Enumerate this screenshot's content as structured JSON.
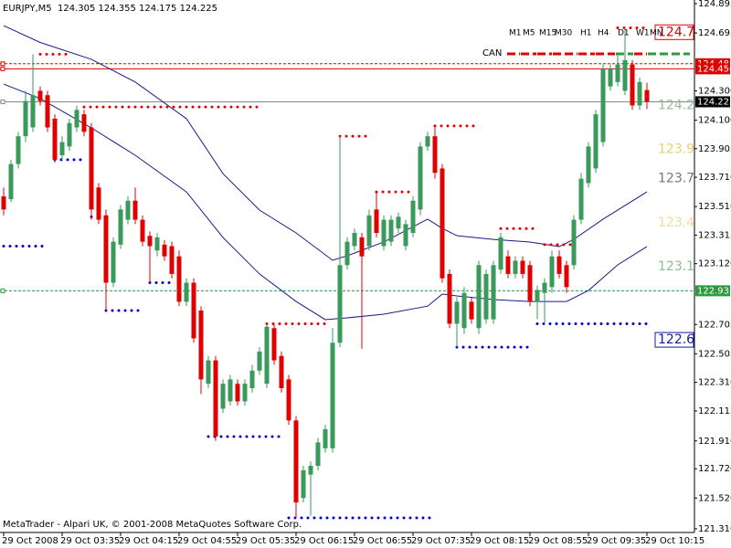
{
  "chart_data": {
    "type": "candlestick",
    "title": "EURJPY,M5  124.305 124.355 124.175 124.225",
    "footer": "MetaTrader - Alpari UK, © 2001-2008 MetaQuotes Software Corp.",
    "categories": [
      "29 Oct 2008",
      null,
      null,
      null,
      null,
      null,
      null,
      null,
      "29 Oct 03:35",
      null,
      null,
      null,
      null,
      null,
      null,
      null,
      "29 Oct 04:15",
      null,
      null,
      null,
      null,
      null,
      null,
      null,
      "29 Oct 04:55",
      null,
      null,
      null,
      null,
      null,
      null,
      null,
      "29 Oct 05:35",
      null,
      null,
      null,
      null,
      null,
      null,
      null,
      "29 Oct 06:15",
      null,
      null,
      null,
      null,
      null,
      null,
      null,
      "29 Oct 06:55",
      null,
      null,
      null,
      null,
      null,
      null,
      null,
      "29 Oct 07:35",
      null,
      null,
      null,
      null,
      null,
      null,
      null,
      "29 Oct 08:15",
      null,
      null,
      null,
      null,
      null,
      null,
      null,
      "29 Oct 08:55",
      null,
      null,
      null,
      null,
      null,
      null,
      null,
      "29 Oct 09:35",
      null,
      null,
      null,
      null,
      null,
      null,
      null,
      "29 Oct 10:15"
    ],
    "open": [
      123.58,
      123.56,
      123.8,
      123.99,
      124.05,
      124.3,
      124.27,
      124.11,
      123.86,
      123.92,
      124.05,
      124.14,
      124.05,
      123.64,
      123.45,
      122.99,
      123.25,
      123.42,
      123.55,
      123.42,
      123.31,
      123.21,
      123.25,
      123.24,
      123.17,
      122.86,
      122.99,
      122.8,
      122.3,
      122.46,
      122.13,
      122.18,
      122.3,
      122.18,
      122.27,
      122.39,
      122.3,
      122.68,
      122.49,
      122.33,
      122.05,
      121.52,
      121.68,
      121.74,
      121.86,
      121.86,
      122.58,
      123.11,
      123.24,
      123.3,
      123.24,
      123.49,
      123.24,
      123.27,
      123.36,
      123.24,
      123.33,
      123.49,
      123.92,
      123.99,
      123.77,
      123.05,
      122.71,
      122.68,
      122.86,
      122.68,
      122.74,
      122.74,
      123.08,
      123.17,
      123.05,
      123.14,
      123.11,
      122.86,
      122.92,
      122.96,
      123.17,
      123.11,
      123.11,
      123.42,
      123.67,
      123.77,
      123.95,
      124.33,
      124.36,
      124.3,
      124.48,
      124.2,
      124.305
    ],
    "high": [
      123.64,
      123.83,
      124.02,
      124.3,
      124.55,
      124.33,
      124.3,
      124.14,
      123.99,
      124.11,
      124.2,
      124.17,
      124.08,
      123.67,
      123.49,
      123.3,
      123.52,
      123.58,
      123.64,
      123.45,
      123.34,
      123.33,
      123.28,
      123.27,
      123.21,
      123.02,
      123.02,
      122.83,
      122.49,
      122.49,
      122.33,
      122.36,
      122.33,
      122.33,
      122.43,
      122.55,
      122.71,
      122.71,
      122.52,
      122.36,
      122.08,
      121.74,
      121.77,
      121.93,
      122.02,
      122.68,
      123.99,
      123.3,
      123.36,
      123.33,
      123.49,
      123.61,
      123.45,
      123.45,
      123.47,
      123.42,
      123.58,
      123.95,
      124.02,
      124.05,
      123.8,
      123.08,
      122.89,
      122.96,
      122.89,
      123.14,
      123.08,
      123.14,
      123.33,
      123.21,
      123.17,
      123.17,
      123.14,
      122.97,
      123.02,
      123.21,
      123.21,
      123.14,
      123.45,
      123.74,
      123.95,
      124.17,
      124.48,
      124.48,
      124.55,
      124.73,
      124.51,
      124.39,
      124.355
    ],
    "low": [
      123.45,
      123.54,
      123.77,
      123.95,
      124.02,
      124.2,
      124.02,
      123.81,
      123.83,
      123.89,
      124.02,
      123.99,
      123.42,
      123.39,
      122.8,
      122.96,
      123.22,
      123.39,
      123.39,
      123.24,
      122.99,
      123.17,
      123.14,
      123.02,
      122.83,
      122.83,
      122.58,
      122.23,
      122.27,
      121.91,
      122.1,
      122.15,
      122.15,
      122.15,
      122.24,
      122.36,
      122.27,
      122.43,
      122.24,
      122.02,
      121.38,
      121.49,
      121.4,
      121.71,
      121.83,
      121.83,
      122.55,
      123.08,
      123.21,
      122.54,
      123.21,
      123.3,
      123.21,
      123.24,
      123.33,
      123.21,
      123.3,
      123.45,
      123.89,
      123.7,
      122.99,
      122.68,
      122.55,
      122.64,
      122.71,
      122.64,
      122.71,
      122.71,
      123.05,
      123.02,
      123.02,
      123.02,
      122.83,
      122.74,
      122.71,
      122.92,
      123.02,
      122.92,
      123.08,
      123.39,
      123.64,
      123.74,
      123.92,
      124.3,
      124.33,
      124.27,
      124.17,
      124.17,
      124.175
    ],
    "close": [
      123.49,
      123.8,
      123.99,
      124.23,
      124.27,
      124.23,
      124.05,
      123.83,
      123.95,
      124.08,
      124.17,
      124.02,
      123.49,
      123.42,
      122.99,
      123.27,
      123.49,
      123.55,
      123.42,
      123.27,
      123.24,
      123.3,
      123.17,
      123.05,
      122.86,
      122.99,
      122.61,
      122.33,
      122.46,
      121.94,
      122.3,
      122.33,
      122.18,
      122.3,
      122.39,
      122.52,
      122.69,
      122.46,
      122.27,
      122.05,
      121.49,
      121.71,
      121.74,
      121.9,
      121.99,
      122.58,
      123.11,
      123.27,
      123.33,
      123.17,
      123.45,
      123.33,
      123.42,
      123.42,
      123.44,
      123.39,
      123.55,
      123.92,
      123.99,
      123.74,
      123.02,
      122.71,
      122.86,
      122.92,
      122.74,
      123.11,
      123.05,
      123.11,
      123.3,
      123.05,
      123.14,
      123.05,
      122.86,
      122.94,
      122.99,
      123.17,
      123.05,
      122.96,
      123.42,
      123.7,
      123.92,
      124.14,
      124.45,
      124.45,
      124.48,
      124.51,
      124.2,
      124.36,
      124.225
    ],
    "up_color": "#3a9a5c",
    "down_color": "#e00000",
    "ylim": [
      121.31,
      124.895
    ],
    "yticks": [
      124.895,
      124.695,
      {
        "value": 124.3,
        "label": "124.300"
      },
      {
        "value": 124.1,
        "label": "124.100"
      },
      123.905,
      {
        "value": 123.71,
        "label": "123.710"
      },
      {
        "value": 123.51,
        "label": "123.510"
      },
      123.315,
      {
        "value": 123.12,
        "label": "123.120"
      },
      122.705,
      122.505,
      {
        "value": 122.31,
        "label": "122.310"
      },
      122.115,
      {
        "value": 121.91,
        "label": "121.910"
      },
      {
        "value": 121.72,
        "label": "121.720"
      },
      {
        "value": 121.52,
        "label": "121.520"
      },
      {
        "value": 121.31,
        "label": "121.310"
      }
    ],
    "ma_lines": [
      {
        "color": "#1a1a8c",
        "x": [
          0,
          5,
          12,
          18,
          25,
          30,
          35,
          40,
          45,
          47,
          52,
          58,
          60,
          62,
          67,
          72,
          76,
          78,
          82,
          86,
          88
        ],
        "values": [
          124.745,
          124.63,
          124.515,
          124.36,
          124.11,
          123.735,
          123.486,
          123.33,
          123.143,
          123.174,
          123.268,
          123.424,
          123.361,
          123.311,
          123.286,
          123.268,
          123.237,
          123.286,
          123.424,
          123.548,
          123.61
        ]
      },
      {
        "color": "#1a1a8c",
        "x": [
          0,
          5,
          12,
          18,
          25,
          30,
          35,
          40,
          44,
          47,
          52,
          58,
          60,
          62,
          67,
          72,
          77,
          80,
          84,
          88
        ],
        "values": [
          124.346,
          124.247,
          124.047,
          123.86,
          123.61,
          123.299,
          123.05,
          122.862,
          122.738,
          122.75,
          122.775,
          122.83,
          122.912,
          122.9,
          122.875,
          122.862,
          122.862,
          122.937,
          123.112,
          123.237
        ]
      }
    ],
    "fractals": [
      {
        "color": "#e00000",
        "value": 124.55,
        "from": 5,
        "to": 9
      },
      {
        "color": "#e00000",
        "value": 124.19,
        "from": 11,
        "to": 35
      },
      {
        "color": "#e00000",
        "value": 122.71,
        "from": 36,
        "to": 44
      },
      {
        "color": "#e00000",
        "value": 123.99,
        "from": 46,
        "to": 50
      },
      {
        "color": "#e00000",
        "value": 123.61,
        "from": 51,
        "to": 56
      },
      {
        "color": "#e00000",
        "value": 124.06,
        "from": 59,
        "to": 65
      },
      {
        "color": "#e00000",
        "value": 123.36,
        "from": 68,
        "to": 73
      },
      {
        "color": "#e00000",
        "value": 123.25,
        "from": 74,
        "to": 78
      },
      {
        "color": "#e00000",
        "value": 124.73,
        "from": 84,
        "to": 88
      },
      {
        "color": "#0000cc",
        "value": 123.24,
        "from": 0,
        "to": 6
      },
      {
        "color": "#0000cc",
        "value": 123.83,
        "from": 7,
        "to": 11
      },
      {
        "color": "#0000cc",
        "value": 123.44,
        "from": 12,
        "to": 13
      },
      {
        "color": "#0000cc",
        "value": 122.8,
        "from": 14,
        "to": 19
      },
      {
        "color": "#0000cc",
        "value": 122.99,
        "from": 20,
        "to": 23
      },
      {
        "color": "#0000cc",
        "value": 121.94,
        "from": 28,
        "to": 38
      },
      {
        "color": "#0000cc",
        "value": 121.385,
        "from": 39,
        "to": 59
      },
      {
        "color": "#0000cc",
        "value": 122.55,
        "from": 62,
        "to": 72
      },
      {
        "color": "#0000cc",
        "value": 122.71,
        "from": 73,
        "to": 88
      }
    ],
    "hlines": [
      {
        "value": 124.485,
        "color": "#e00000",
        "dashed": true
      },
      {
        "value": 124.45,
        "label": "124.450",
        "color": "#e00000",
        "dashed": false
      },
      {
        "value": 124.225,
        "color": "#888888",
        "dashed": false,
        "tag_color": "#000000"
      },
      {
        "value": 122.935,
        "color": "#2e9a3e",
        "dashed": true
      }
    ],
    "level_labels": [
      {
        "value": 124.7,
        "color": "#e00000",
        "boxed": true
      },
      {
        "value": 124.2,
        "color": "#9ab89a",
        "boxed": false
      },
      {
        "value": 123.9,
        "color": "#e8d070",
        "boxed": false
      },
      {
        "value": 123.7,
        "color": "#777777",
        "boxed": false
      },
      {
        "value": 123.4,
        "color": "#eedc9a",
        "boxed": false
      },
      {
        "value": 123.1,
        "color": "#8cc08c",
        "boxed": false
      },
      {
        "value": 122.6,
        "color": "#1a1aa0",
        "boxed": true
      }
    ],
    "timeframes": [
      "M1",
      "M5",
      "M15",
      "M30",
      "H1",
      "H4",
      "D1",
      "W1",
      "MN"
    ],
    "timeframe_colors": [
      "#e00000",
      "#e00000",
      "#e00000",
      "#e00000",
      "#e00000",
      "#e00000",
      "#2e9a3e",
      "#e00000",
      "#2e9a3e"
    ],
    "signal_label": "CAN"
  }
}
